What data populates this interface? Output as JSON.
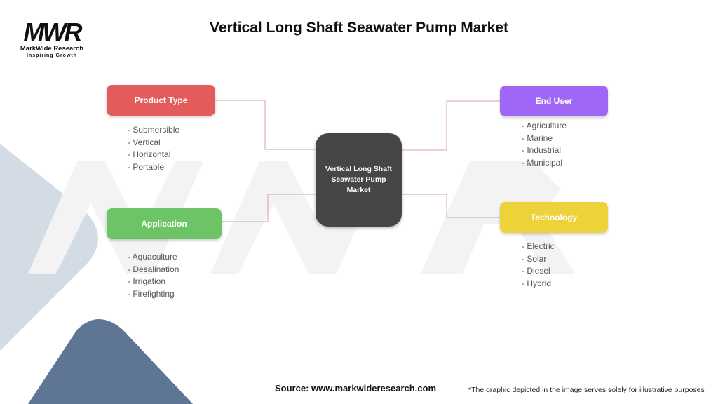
{
  "title": "Vertical Long Shaft Seawater Pump Market",
  "logo": {
    "mark": "MWR",
    "name": "MarkWide Research",
    "tagline": "Inspiring Growth"
  },
  "center": {
    "label": "Vertical Long Shaft Seawater Pump Market",
    "color": "#464646"
  },
  "branches": [
    {
      "label": "Product Type",
      "color": "#e35b5b",
      "items": [
        "- Submersible",
        "- Vertical",
        "- Horizontal",
        "- Portable"
      ]
    },
    {
      "label": "Application",
      "color": "#6cc466",
      "items": [
        "- Aquaculture",
        "- Desalination",
        "- Irrigation",
        "- Firefighting"
      ]
    },
    {
      "label": "End User",
      "color": "#a066f5",
      "items": [
        "- Agriculture",
        "- Marine",
        "- Industrial",
        "- Municipal"
      ]
    },
    {
      "label": "Technology",
      "color": "#eed23a",
      "items": [
        "- Electric",
        "- Solar",
        "- Diesel",
        "- Hybrid"
      ]
    }
  ],
  "connector_color": "#d9a0a0",
  "source": "Source: www.markwideresearch.com",
  "disclaimer": "*The graphic depicted in the image serves solely for illustrative purposes"
}
